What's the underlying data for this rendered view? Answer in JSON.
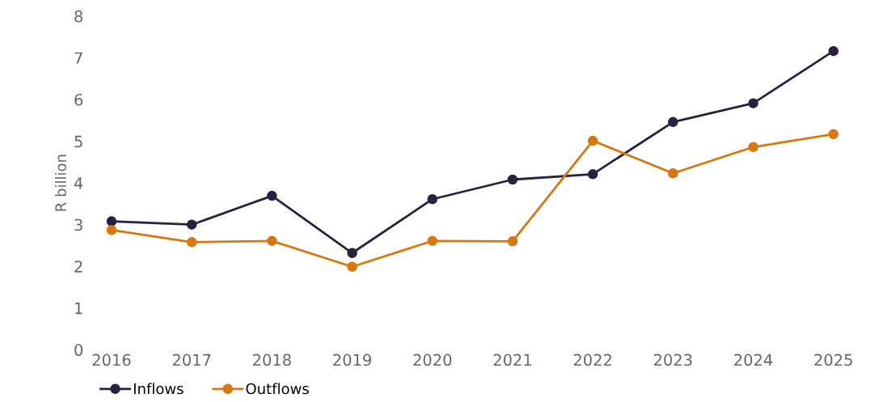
{
  "chart_data": {
    "type": "line",
    "ylabel": "R billion",
    "categories": [
      "2016",
      "2017",
      "2018",
      "2019",
      "2020",
      "2021",
      "2022",
      "2023",
      "2024",
      "2025"
    ],
    "series": [
      {
        "name": "Inflows",
        "color": "#29223f",
        "values": [
          3.08,
          3.0,
          3.69,
          2.32,
          3.61,
          4.08,
          4.21,
          5.46,
          5.91,
          7.16
        ]
      },
      {
        "name": "Outflows",
        "color": "#d9770f",
        "values": [
          2.87,
          2.58,
          2.61,
          1.99,
          2.61,
          2.6,
          5.01,
          4.23,
          4.86,
          5.17
        ]
      }
    ],
    "ylim": [
      0,
      8
    ],
    "yticks": [
      0,
      1,
      2,
      3,
      4,
      5,
      6,
      7,
      8
    ],
    "grid": false,
    "legend": "bottom left",
    "marker": "circle",
    "line_style": "solid"
  }
}
